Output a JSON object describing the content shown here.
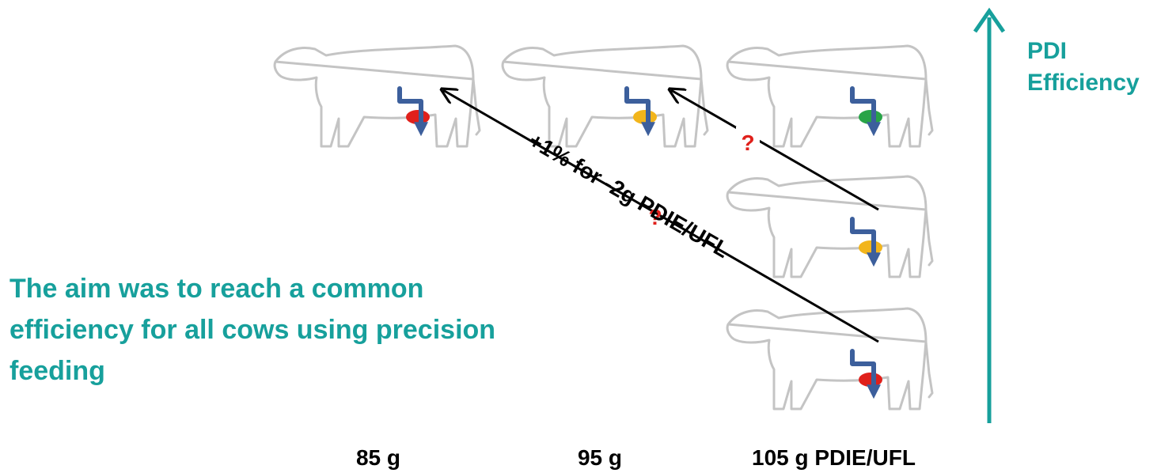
{
  "axis": {
    "label_lines": [
      "PDI",
      "Efficiency"
    ]
  },
  "aim": {
    "lines": [
      "The aim was to reach a common",
      "efficiency for all cows using precision",
      "feeding"
    ]
  },
  "arrows": [
    {
      "question": "?"
    },
    {
      "label": "+1% for -2g PDIE/UFL",
      "question": "?"
    }
  ],
  "levels": [
    "85 g",
    "95 g",
    "105 g PDIE/UFL"
  ]
}
